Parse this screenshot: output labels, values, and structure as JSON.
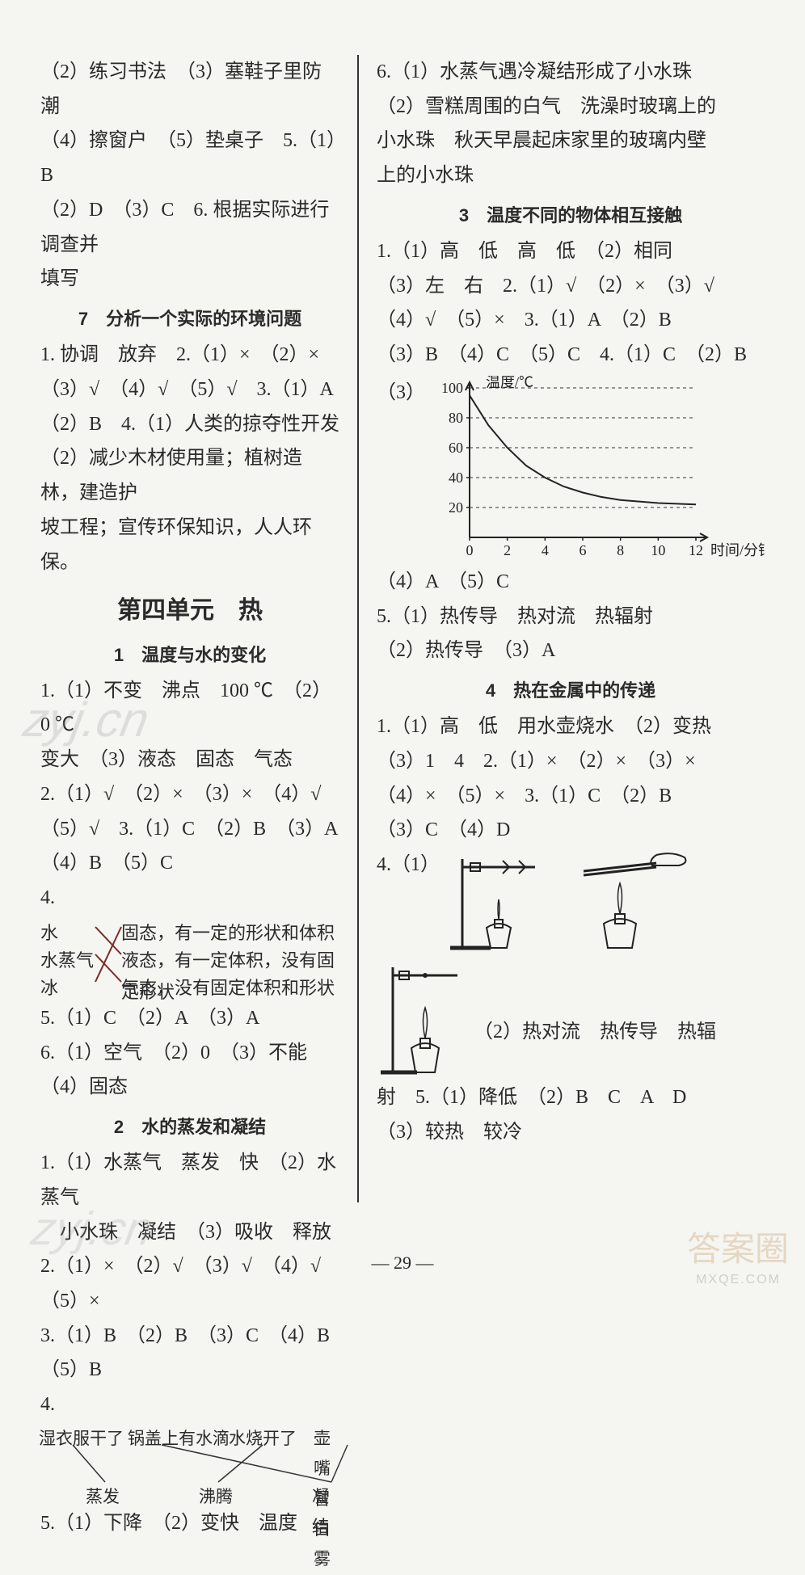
{
  "page_number": "— 29 —",
  "watermarks": {
    "w1": "zyj.cn",
    "w2": "zyj.cn",
    "w3": "答案圈",
    "w4": "MXQE.COM"
  },
  "left": {
    "l1": "（2）练习书法　（3）塞鞋子里防潮",
    "l2": "（4）擦窗户　（5）垫桌子　5.（1）B",
    "l3": "（2）D　（3）C　6. 根据实际进行调查并",
    "l4": "填写",
    "sec7_title": "7　分析一个实际的环境问题",
    "l5": "1. 协调　放弃　2.（1）×　（2）×",
    "l6": "（3）√　（4）√　（5）√　3.（1）A",
    "l7": "（2）B　4.（1）人类的掠夺性开发",
    "l8": "（2）减少木材使用量；植树造林，建造护",
    "l9": "坡工程；宣传环保知识，人人环保。",
    "unit_title": "第四单元　热",
    "sec1_title": "1　温度与水的变化",
    "l10": "1.（1）不变　沸点　100 ℃　（2）0 ℃",
    "l11": "变大　（3）液态　固态　气态",
    "l12": "2.（1）√　（2）×　（3）×　（4）√",
    "l13": "（5）√　3.（1）C　（2）B　（3）A",
    "l14": "（4）B　（5）C",
    "l15": "4.",
    "match1": {
      "left_items": [
        "水",
        "水蒸气",
        "冰"
      ],
      "right_items": [
        "固态，有一定的形状和体积",
        "液态，有一定体积，没有固定形状",
        "气态，没有固定体积和形状"
      ],
      "edges": [
        [
          0,
          1
        ],
        [
          1,
          2
        ],
        [
          2,
          0
        ]
      ],
      "line_color": "#7a2b2b"
    },
    "l16": "5.（1）C　（2）A　（3）A",
    "l17": "6.（1）空气　（2）0　（3）不能　（4）固态",
    "sec2_title": "2　水的蒸发和凝结",
    "l18": "1.（1）水蒸气　蒸发　快　（2）水蒸气",
    "l19": "　小水珠　凝结　（3）吸收　释放",
    "l20": "2.（1）×　（2）√　（3）√　（4）√",
    "l21": "（5）×",
    "l22": "3.（1）B　（2）B　（3）C　（4）B　（5）B",
    "l23": "4.",
    "match2": {
      "top_items": [
        "湿衣服干了",
        "锅盖上有水滴",
        "水烧开了",
        "壶嘴冒白雾"
      ],
      "bottom_items": [
        "蒸发",
        "沸腾",
        "凝结"
      ],
      "edges": [
        [
          0,
          0
        ],
        [
          1,
          2
        ],
        [
          2,
          1
        ],
        [
          3,
          2
        ]
      ],
      "line_color": "#333"
    },
    "l24": "5.（1）下降　（2）变快　温度"
  },
  "right": {
    "r1": "6.（1）水蒸气遇冷凝结形成了小水珠",
    "r2": "（2）雪糕周围的白气　洗澡时玻璃上的",
    "r3": "小水珠　秋天早晨起床家里的玻璃内壁",
    "r4": "上的小水珠",
    "sec3_title": "3　温度不同的物体相互接触",
    "r5": "1.（1）高　低　高　低　（2）相同",
    "r6": "（3）左　右　2.（1）√　（2）×　（3）√",
    "r7": "（4）√　（5）×　3.（1）A　（2）B",
    "r8": "（3）B　（4）C　（5）C　4.（1）C　（2）B",
    "r9_pre": "（3）",
    "chart": {
      "type": "line",
      "xlabel": "时间/分钟",
      "ylabel": "温度/℃",
      "xlim": [
        0,
        12
      ],
      "ylim": [
        0,
        100
      ],
      "xticks": [
        0,
        2,
        4,
        6,
        8,
        10,
        12
      ],
      "yticks": [
        20,
        40,
        60,
        80,
        100
      ],
      "grid_color": "#333",
      "background_color": "#f5f5f2",
      "axis_color": "#222",
      "line_color": "#222",
      "line_width": 2,
      "data": [
        [
          0,
          95
        ],
        [
          1,
          75
        ],
        [
          2,
          60
        ],
        [
          3,
          48
        ],
        [
          4,
          40
        ],
        [
          5,
          34
        ],
        [
          6,
          30
        ],
        [
          7,
          27
        ],
        [
          8,
          25
        ],
        [
          9,
          24
        ],
        [
          10,
          23
        ],
        [
          11,
          22.5
        ],
        [
          12,
          22
        ]
      ],
      "label_fontsize": 18
    },
    "r10": "（4）A　（5）C",
    "r11": "5.（1）热传导　热对流　热辐射",
    "r12": "（2）热传导　（3）A",
    "sec4_title": "4　热在金属中的传递",
    "r13": "1.（1）高　低　用水壶烧水　（2）变热",
    "r14": "（3）1　4　2.（1）×　（2）×　（3）×",
    "r15": "（4）×　（5）×　3.（1）C　（2）B",
    "r16": "（3）C　（4）D",
    "r17": "4.（1）",
    "r18_part2": "（2）热对流　热传导　热辐",
    "r19": "射　5.（1）降低　（2）B　C　A　D",
    "r20": "（3）较热　较冷"
  }
}
